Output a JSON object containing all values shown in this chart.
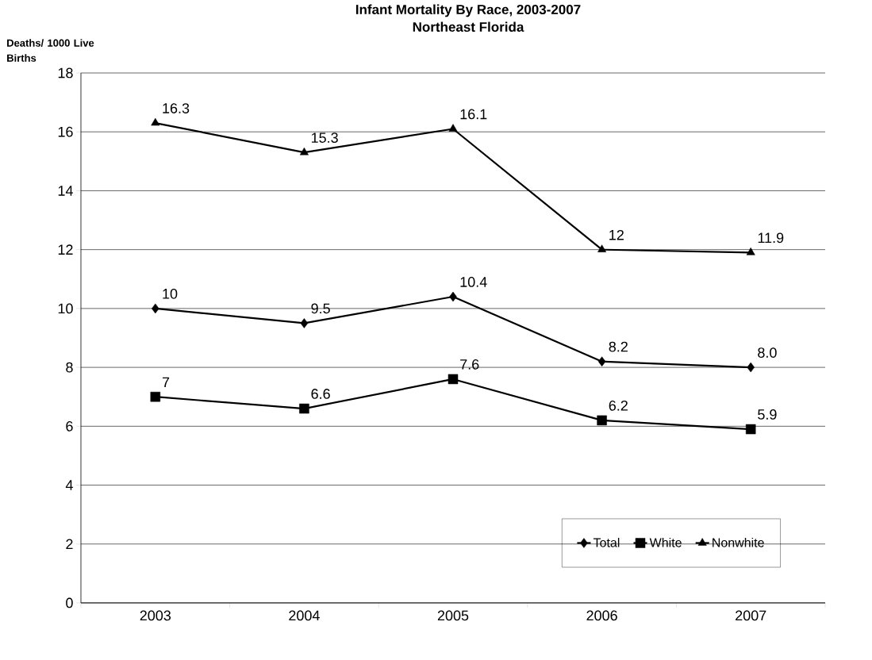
{
  "chart_data": {
    "type": "line",
    "title": "Infant Mortality By Race, 2003-2007",
    "subtitle": "Northeast Florida",
    "ylabel": "Deaths/ 1000 Live Births",
    "categories": [
      "2003",
      "2004",
      "2005",
      "2006",
      "2007"
    ],
    "series": [
      {
        "name": "Total",
        "color": "#000000",
        "marker": "diamond",
        "values": [
          10,
          9.5,
          10.4,
          8.2,
          8.0
        ],
        "value_labels": [
          "10",
          "9.5",
          "10.4",
          "8.2",
          "8.0"
        ]
      },
      {
        "name": "White",
        "color": "#000000",
        "marker": "square",
        "values": [
          7,
          6.6,
          7.6,
          6.2,
          5.9
        ],
        "value_labels": [
          "7",
          "6.6",
          "7.6",
          "6.2",
          "5.9"
        ]
      },
      {
        "name": "Nonwhite",
        "color": "#000000",
        "marker": "triangle",
        "values": [
          16.3,
          15.3,
          16.1,
          12,
          11.9
        ],
        "value_labels": [
          "16.3",
          "15.3",
          "16.1",
          "12",
          "11.9"
        ]
      }
    ],
    "ylim": [
      0,
      18
    ],
    "yticks": [
      0,
      2,
      4,
      6,
      8,
      10,
      12,
      14,
      16,
      18
    ],
    "grid": "y",
    "legend": "bottom right",
    "line_style": "solid"
  }
}
